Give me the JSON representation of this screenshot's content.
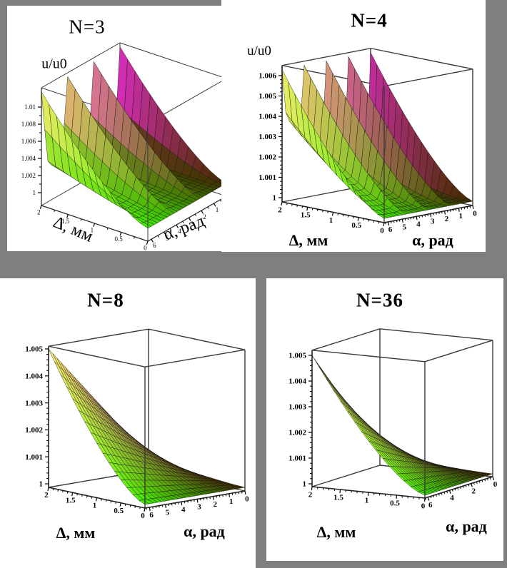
{
  "figure": {
    "background_color": "#7f7f7f",
    "panel_color": "#ffffff",
    "description": "Four 3D surface plots of relative amplitude u/u0 versus gap Δ (mm) and angle α (rad) for N = 3, 4, 8, 36"
  },
  "chart_data": [
    {
      "type": "surface_3d",
      "title": "N=3",
      "zlabel": "u/u0",
      "xlabel": "Δ, мм",
      "ylabel": "α, рад",
      "x_axis": {
        "label": "Δ, мм",
        "range": [
          0,
          2
        ],
        "ticks": [
          2,
          1.5,
          1,
          0.5,
          0
        ]
      },
      "y_axis": {
        "label": "α, рад",
        "range": [
          0,
          6.2832
        ],
        "ticks": [
          6,
          5,
          4,
          3,
          2,
          1,
          0
        ]
      },
      "z_axis": {
        "label": "u/u0",
        "range": [
          0.9985,
          1.01225
        ],
        "ticks": [
          1,
          1.002,
          1.004,
          1.006,
          1.008,
          1.01
        ]
      },
      "surface": {
        "N": 3,
        "base_amp": 0.0042,
        "peak_amp": 0.0118,
        "peak_width": 0.45,
        "peak_positions": [
          0,
          2.0944,
          4.1888,
          6.2832
        ],
        "d_power": 1.4,
        "alpha_floor": 0.07,
        "undershoot_amp": 0.0013,
        "grid": [
          24,
          14
        ],
        "max_value": 1.0118,
        "min_value": 0.9987
      }
    },
    {
      "type": "surface_3d",
      "title": "N=4",
      "zlabel": "u/u0",
      "xlabel": "Δ, мм",
      "ylabel": "α, рад",
      "x_axis": {
        "label": "Δ, мм",
        "range": [
          0,
          2
        ],
        "ticks": [
          2,
          1.5,
          1,
          0.5,
          0
        ]
      },
      "y_axis": {
        "label": "α, рад",
        "range": [
          0,
          6.2832
        ],
        "ticks": [
          6,
          5,
          4,
          3,
          2,
          1,
          0
        ]
      },
      "z_axis": {
        "label": "u/u0",
        "range": [
          0.9998,
          1.0065
        ],
        "ticks": [
          1,
          1.001,
          1.002,
          1.003,
          1.004,
          1.005,
          1.006
        ]
      },
      "surface": {
        "N": 4,
        "base_amp": 0.004,
        "peak_amp": 0.0063,
        "peak_width": 0.3,
        "peak_positions": [
          0,
          1.5708,
          3.1416,
          4.7124,
          6.2832
        ],
        "d_power": 1.4,
        "alpha_floor": 0.07,
        "undershoot_amp": 0,
        "grid": [
          24,
          16
        ],
        "max_value": 1.0063,
        "min_value": 1.0
      }
    },
    {
      "type": "surface_3d",
      "title": "N=8",
      "zlabel": null,
      "xlabel": "Δ, мм",
      "ylabel": "α, рад",
      "x_axis": {
        "label": "Δ, мм",
        "range": [
          0,
          2
        ],
        "ticks": [
          2,
          1.5,
          1,
          0.5,
          0
        ]
      },
      "y_axis": {
        "label": "α, рад",
        "range": [
          0,
          6.2832
        ],
        "ticks": [
          6,
          5,
          4,
          3,
          2,
          1,
          0
        ]
      },
      "z_axis": {
        "label": "",
        "range": [
          0.9999,
          1.0051
        ],
        "ticks": [
          1,
          1.001,
          1.002,
          1.003,
          1.004,
          1.005
        ]
      },
      "surface": {
        "N": 8,
        "base_amp": 0.005,
        "peak_amp": 0,
        "peak_width": 0,
        "peak_positions": [],
        "d_power": 1.4,
        "alpha_floor": 0.07,
        "undershoot_amp": 0,
        "grid": [
          24,
          16
        ],
        "max_value": 1.005,
        "min_value": 1.0
      }
    },
    {
      "type": "surface_3d",
      "title": "N=36",
      "zlabel": null,
      "xlabel": "Δ, мм",
      "ylabel": "α, рад",
      "x_axis": {
        "label": "Δ, мм",
        "range": [
          0,
          2
        ],
        "ticks": [
          2,
          1.5,
          1,
          0.5,
          0
        ]
      },
      "y_axis": {
        "label": "α, рад",
        "range": [
          0,
          6.2832
        ],
        "ticks": [
          6,
          4,
          2,
          0
        ]
      },
      "z_axis": {
        "label": "",
        "range": [
          0.9999,
          1.0052
        ],
        "ticks": [
          1,
          1.001,
          1.002,
          1.003,
          1.004,
          1.005
        ]
      },
      "surface": {
        "N": 36,
        "base_amp": 0.005,
        "peak_amp": 0,
        "peak_width": 0,
        "peak_positions": [],
        "d_power": 1.4,
        "alpha_floor": 0.07,
        "undershoot_amp": 0,
        "grid": [
          28,
          16
        ],
        "max_value": 1.005,
        "min_value": 1.0
      }
    }
  ],
  "colors": {
    "surface_low": "#3c9600",
    "surface_low_dark": "#3c2800",
    "surface_high_left": "#fff073",
    "surface_high_right": "#ff2dff",
    "mesh_line": "#111111",
    "box_line": "#333333",
    "text": "#000000"
  }
}
